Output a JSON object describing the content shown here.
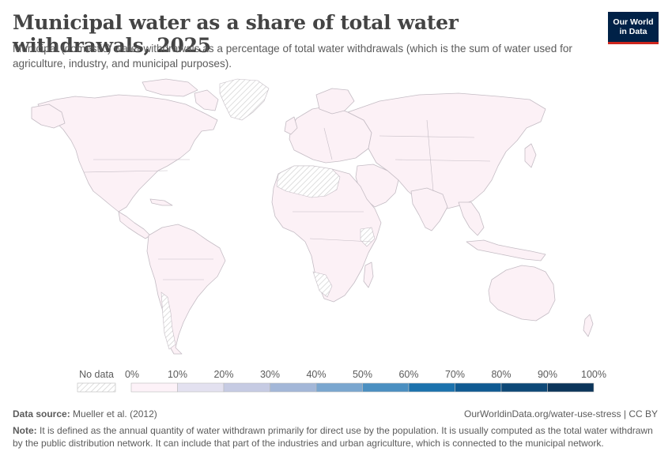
{
  "title": "Municipal water as a share of total water withdrawals, 2025",
  "subtitle": "Municipal (domestic) water withdrawals as a percentage of total water withdrawals (which is the sum of water used for agriculture, industry, and municipal purposes).",
  "logo": {
    "text": "Our World\nin Data",
    "bg_color": "#002147",
    "accent_color": "#ce261e"
  },
  "map": {
    "land_color": "#fcf1f6",
    "border_color": "#c4bcc4",
    "no_data_hatch_color": "#d0d0d0"
  },
  "legend": {
    "no_data_label": "No data",
    "bins": [
      {
        "label": "0%",
        "color": "#fdf2f8"
      },
      {
        "label": "10%",
        "color": "#e3e1f0"
      },
      {
        "label": "20%",
        "color": "#c6cbe3"
      },
      {
        "label": "30%",
        "color": "#a3b7d8"
      },
      {
        "label": "40%",
        "color": "#7aa6cf"
      },
      {
        "label": "50%",
        "color": "#4a8fc1"
      },
      {
        "label": "60%",
        "color": "#1b72ad"
      },
      {
        "label": "70%",
        "color": "#0f5a92"
      },
      {
        "label": "80%",
        "color": "#0d4877"
      },
      {
        "label": "90%",
        "color": "#0b355a"
      }
    ],
    "end_label": "100%"
  },
  "footer": {
    "source_prefix": "Data source:",
    "source_text": "Mueller et al. (2012)",
    "url_text": "OurWorldinData.org/water-use-stress | CC BY",
    "note_prefix": "Note:",
    "note_text": "It is defined as the annual quantity of water withdrawn primarily for direct use by the population. It is usually computed as the total water withdrawn by the public distribution network. It can include that part of the industries and urban agriculture, which is connected to the municipal network."
  }
}
